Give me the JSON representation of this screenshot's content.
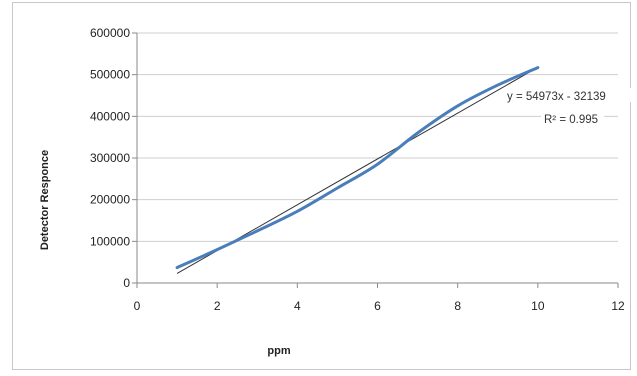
{
  "chart_data": {
    "type": "line",
    "title": "",
    "xlabel": "ppm",
    "ylabel": "Detector Responce",
    "xlim": [
      0,
      12
    ],
    "ylim": [
      0,
      600000
    ],
    "xticks": [
      0,
      2,
      4,
      6,
      8,
      10,
      12
    ],
    "yticks": [
      0,
      100000,
      200000,
      300000,
      400000,
      500000,
      600000
    ],
    "ytick_labels": [
      "0",
      "100000",
      "200000",
      "300000",
      "400000",
      "500000",
      "600000"
    ],
    "grid": "horizontal",
    "legend": "none",
    "series": [
      {
        "color": "#4a7ebb",
        "x": [
          1,
          2,
          3,
          4,
          5,
          6,
          7,
          8,
          9,
          10
        ],
        "values": [
          37000,
          80000,
          125000,
          172000,
          228000,
          285000,
          360000,
          425000,
          475000,
          517000
        ]
      }
    ],
    "trendline": {
      "type": "linear",
      "color": "#333333",
      "slope": 54973,
      "intercept": -32139,
      "x_range": [
        1,
        10
      ],
      "equation_label": "y = 54973x - 32139",
      "r2_label": "R² = 0.995"
    }
  }
}
